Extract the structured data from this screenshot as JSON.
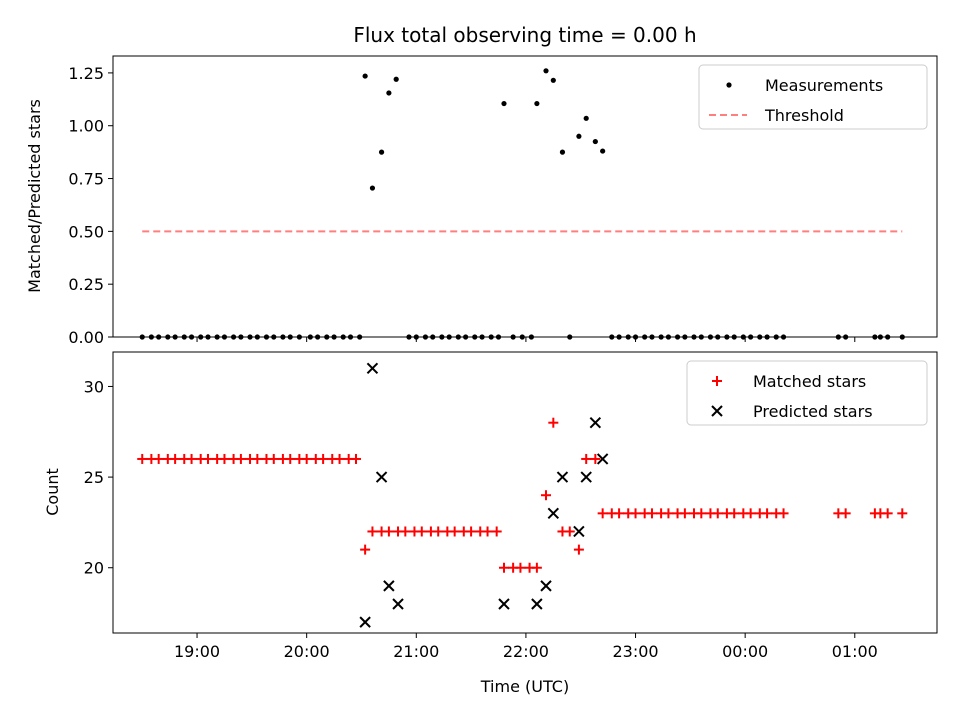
{
  "chart_data": [
    {
      "type": "scatter",
      "title": "Flux total observing time = 0.00 h",
      "xlabel": "",
      "ylabel": "Matched/Predicted stars",
      "ylim": [
        0,
        1.33
      ],
      "xlim": [
        "18:14",
        "01:45"
      ],
      "x_tick_labels": [
        "19:00",
        "20:00",
        "21:00",
        "22:00",
        "23:00",
        "00:00",
        "01:00"
      ],
      "y_ticks": [
        0,
        0.25,
        0.5,
        0.75,
        1.0,
        1.25
      ],
      "y_tick_labels": [
        "0.00",
        "0.25",
        "0.50",
        "0.75",
        "1.00",
        "1.25"
      ],
      "legend_position": "top-right",
      "series": [
        {
          "name": "Measurements",
          "color": "#000000",
          "marker": "dot",
          "points": [
            [
              "18:30",
              0
            ],
            [
              "18:35",
              0
            ],
            [
              "18:39",
              0
            ],
            [
              "18:44",
              0
            ],
            [
              "18:48",
              0
            ],
            [
              "18:53",
              0
            ],
            [
              "18:57",
              0
            ],
            [
              "19:02",
              0
            ],
            [
              "19:06",
              0
            ],
            [
              "19:11",
              0
            ],
            [
              "19:15",
              0
            ],
            [
              "19:20",
              0
            ],
            [
              "19:24",
              0
            ],
            [
              "19:29",
              0
            ],
            [
              "19:33",
              0
            ],
            [
              "19:38",
              0
            ],
            [
              "19:42",
              0
            ],
            [
              "19:47",
              0
            ],
            [
              "19:51",
              0
            ],
            [
              "19:56",
              0
            ],
            [
              "20:02",
              0
            ],
            [
              "20:06",
              0
            ],
            [
              "20:11",
              0
            ],
            [
              "20:15",
              0
            ],
            [
              "20:20",
              0
            ],
            [
              "20:24",
              0
            ],
            [
              "20:29",
              0
            ],
            [
              "20:32",
              1.235
            ],
            [
              "20:36",
              0.705
            ],
            [
              "20:41",
              0.875
            ],
            [
              "20:45",
              1.155
            ],
            [
              "20:49",
              1.22
            ],
            [
              "20:56",
              0
            ],
            [
              "21:00",
              0
            ],
            [
              "21:05",
              0
            ],
            [
              "21:09",
              0
            ],
            [
              "21:14",
              0
            ],
            [
              "21:18",
              0
            ],
            [
              "21:23",
              0
            ],
            [
              "21:27",
              0
            ],
            [
              "21:32",
              0
            ],
            [
              "21:36",
              0
            ],
            [
              "21:41",
              0
            ],
            [
              "21:45",
              0
            ],
            [
              "21:48",
              1.105
            ],
            [
              "21:53",
              0
            ],
            [
              "21:58",
              0
            ],
            [
              "22:03",
              0
            ],
            [
              "22:06",
              1.105
            ],
            [
              "22:11",
              1.26
            ],
            [
              "22:15",
              1.215
            ],
            [
              "22:20",
              0.875
            ],
            [
              "22:24",
              0
            ],
            [
              "22:29",
              0.95
            ],
            [
              "22:33",
              1.035
            ],
            [
              "22:38",
              0.925
            ],
            [
              "22:42",
              0.88
            ],
            [
              "22:47",
              0
            ],
            [
              "22:51",
              0
            ],
            [
              "22:56",
              0
            ],
            [
              "23:00",
              0
            ],
            [
              "23:05",
              0
            ],
            [
              "23:09",
              0
            ],
            [
              "23:14",
              0
            ],
            [
              "23:18",
              0
            ],
            [
              "23:23",
              0
            ],
            [
              "23:27",
              0
            ],
            [
              "23:32",
              0
            ],
            [
              "23:36",
              0
            ],
            [
              "23:41",
              0
            ],
            [
              "23:45",
              0
            ],
            [
              "23:50",
              0
            ],
            [
              "23:54",
              0
            ],
            [
              "23:59",
              0
            ],
            [
              "00:03",
              0
            ],
            [
              "00:08",
              0
            ],
            [
              "00:12",
              0
            ],
            [
              "00:17",
              0
            ],
            [
              "00:21",
              0
            ],
            [
              "00:51",
              0
            ],
            [
              "00:55",
              0
            ],
            [
              "01:11",
              0
            ],
            [
              "01:14",
              0
            ],
            [
              "01:18",
              0
            ],
            [
              "01:26",
              0
            ]
          ]
        },
        {
          "name": "Threshold",
          "color": "#ff7f7f",
          "style": "dashed",
          "points": [
            [
              "18:30",
              0.5
            ],
            [
              "01:26",
              0.5
            ]
          ]
        }
      ]
    },
    {
      "type": "scatter",
      "title": "",
      "xlabel": "Time (UTC)",
      "ylabel": "Count",
      "ylim": [
        16.4,
        31.9
      ],
      "xlim": [
        "18:14",
        "01:45"
      ],
      "x_tick_labels": [
        "19:00",
        "20:00",
        "21:00",
        "22:00",
        "23:00",
        "00:00",
        "01:00"
      ],
      "y_ticks": [
        20,
        25,
        30
      ],
      "y_tick_labels": [
        "20",
        "25",
        "30"
      ],
      "legend_position": "top-right",
      "series": [
        {
          "name": "Matched stars",
          "color": "#ff0000",
          "marker": "plus",
          "points": [
            [
              "18:30",
              26
            ],
            [
              "18:35",
              26
            ],
            [
              "18:39",
              26
            ],
            [
              "18:44",
              26
            ],
            [
              "18:48",
              26
            ],
            [
              "18:53",
              26
            ],
            [
              "18:57",
              26
            ],
            [
              "19:02",
              26
            ],
            [
              "19:06",
              26
            ],
            [
              "19:11",
              26
            ],
            [
              "19:15",
              26
            ],
            [
              "19:20",
              26
            ],
            [
              "19:24",
              26
            ],
            [
              "19:29",
              26
            ],
            [
              "19:33",
              26
            ],
            [
              "19:38",
              26
            ],
            [
              "19:42",
              26
            ],
            [
              "19:47",
              26
            ],
            [
              "19:51",
              26
            ],
            [
              "19:56",
              26
            ],
            [
              "20:00",
              26
            ],
            [
              "20:05",
              26
            ],
            [
              "20:09",
              26
            ],
            [
              "20:14",
              26
            ],
            [
              "20:18",
              26
            ],
            [
              "20:23",
              26
            ],
            [
              "20:27",
              26
            ],
            [
              "20:32",
              21
            ],
            [
              "20:36",
              22
            ],
            [
              "20:41",
              22
            ],
            [
              "20:45",
              22
            ],
            [
              "20:50",
              22
            ],
            [
              "20:54",
              22
            ],
            [
              "20:59",
              22
            ],
            [
              "21:03",
              22
            ],
            [
              "21:08",
              22
            ],
            [
              "21:12",
              22
            ],
            [
              "21:17",
              22
            ],
            [
              "21:21",
              22
            ],
            [
              "21:26",
              22
            ],
            [
              "21:30",
              22
            ],
            [
              "21:35",
              22
            ],
            [
              "21:39",
              22
            ],
            [
              "21:44",
              22
            ],
            [
              "21:48",
              20
            ],
            [
              "21:53",
              20
            ],
            [
              "21:57",
              20
            ],
            [
              "22:02",
              20
            ],
            [
              "22:06",
              20
            ],
            [
              "22:11",
              24
            ],
            [
              "22:15",
              28
            ],
            [
              "22:20",
              22
            ],
            [
              "22:24",
              22
            ],
            [
              "22:29",
              21
            ],
            [
              "22:33",
              26
            ],
            [
              "22:38",
              26
            ],
            [
              "22:42",
              23
            ],
            [
              "22:47",
              23
            ],
            [
              "22:51",
              23
            ],
            [
              "22:56",
              23
            ],
            [
              "23:00",
              23
            ],
            [
              "23:05",
              23
            ],
            [
              "23:09",
              23
            ],
            [
              "23:14",
              23
            ],
            [
              "23:18",
              23
            ],
            [
              "23:23",
              23
            ],
            [
              "23:27",
              23
            ],
            [
              "23:32",
              23
            ],
            [
              "23:36",
              23
            ],
            [
              "23:41",
              23
            ],
            [
              "23:45",
              23
            ],
            [
              "23:50",
              23
            ],
            [
              "23:54",
              23
            ],
            [
              "23:59",
              23
            ],
            [
              "00:03",
              23
            ],
            [
              "00:08",
              23
            ],
            [
              "00:12",
              23
            ],
            [
              "00:17",
              23
            ],
            [
              "00:21",
              23
            ],
            [
              "00:51",
              23
            ],
            [
              "00:55",
              23
            ],
            [
              "01:11",
              23
            ],
            [
              "01:14",
              23
            ],
            [
              "01:18",
              23
            ],
            [
              "01:26",
              23
            ]
          ]
        },
        {
          "name": "Predicted stars",
          "color": "#000000",
          "marker": "x",
          "points": [
            [
              "20:32",
              17
            ],
            [
              "20:36",
              31
            ],
            [
              "20:41",
              25
            ],
            [
              "20:45",
              19
            ],
            [
              "20:50",
              18
            ],
            [
              "21:48",
              18
            ],
            [
              "22:06",
              18
            ],
            [
              "22:11",
              19
            ],
            [
              "22:15",
              23
            ],
            [
              "22:20",
              25
            ],
            [
              "22:29",
              22
            ],
            [
              "22:33",
              25
            ],
            [
              "22:38",
              28
            ],
            [
              "22:42",
              26
            ]
          ]
        }
      ]
    }
  ]
}
